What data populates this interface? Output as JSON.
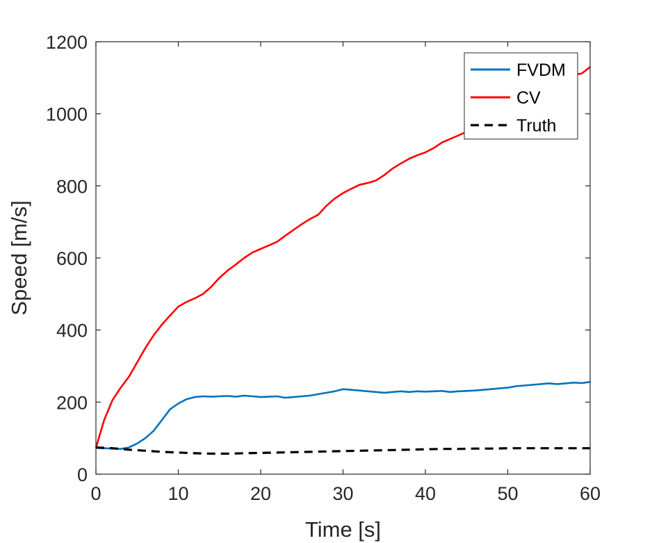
{
  "chart_data": {
    "type": "line",
    "xlabel": "Time [s]",
    "ylabel": "Speed [m/s]",
    "xlim": [
      0,
      60
    ],
    "ylim": [
      0,
      1200
    ],
    "xticks": [
      0,
      10,
      20,
      30,
      40,
      50,
      60
    ],
    "yticks": [
      0,
      200,
      400,
      600,
      800,
      1000,
      1200
    ],
    "grid": false,
    "legend_position": "top-right",
    "series": [
      {
        "name": "FVDM",
        "color": "#0072BD",
        "style": "solid",
        "x": [
          0,
          1,
          2,
          3,
          4,
          5,
          6,
          7,
          8,
          9,
          10,
          11,
          12,
          13,
          14,
          15,
          16,
          17,
          18,
          19,
          20,
          21,
          22,
          23,
          24,
          25,
          26,
          27,
          28,
          29,
          30,
          31,
          32,
          33,
          34,
          35,
          36,
          37,
          38,
          39,
          40,
          41,
          42,
          43,
          44,
          45,
          46,
          47,
          48,
          49,
          50,
          51,
          52,
          53,
          54,
          55,
          56,
          57,
          58,
          59,
          60
        ],
        "y": [
          73,
          72,
          71,
          70,
          74,
          85,
          100,
          120,
          150,
          180,
          196,
          208,
          214,
          216,
          215,
          216,
          217,
          215,
          218,
          216,
          214,
          215,
          216,
          212,
          214,
          216,
          218,
          222,
          226,
          230,
          236,
          234,
          232,
          230,
          228,
          226,
          228,
          230,
          228,
          230,
          229,
          230,
          231,
          228,
          230,
          231,
          232,
          234,
          236,
          238,
          240,
          244,
          246,
          248,
          250,
          252,
          250,
          252,
          254,
          253,
          256
        ]
      },
      {
        "name": "CV",
        "color": "#FF0000",
        "style": "solid",
        "x": [
          0,
          1,
          2,
          3,
          4,
          5,
          6,
          7,
          8,
          9,
          10,
          11,
          12,
          13,
          14,
          15,
          16,
          17,
          18,
          19,
          20,
          21,
          22,
          23,
          24,
          25,
          26,
          27,
          28,
          29,
          30,
          31,
          32,
          33,
          34,
          35,
          36,
          37,
          38,
          39,
          40,
          41,
          42,
          43,
          44,
          45,
          46,
          47,
          48,
          49,
          50,
          51,
          52,
          53,
          54,
          55,
          56,
          57,
          58,
          59,
          60
        ],
        "y": [
          73,
          150,
          205,
          240,
          270,
          310,
          350,
          385,
          415,
          440,
          465,
          478,
          488,
          500,
          520,
          545,
          565,
          582,
          600,
          615,
          625,
          635,
          645,
          662,
          678,
          694,
          708,
          720,
          745,
          765,
          780,
          792,
          803,
          808,
          815,
          830,
          848,
          862,
          875,
          885,
          893,
          905,
          920,
          930,
          940,
          950,
          962,
          975,
          990,
          1005,
          1015,
          1028,
          1045,
          1058,
          1068,
          1078,
          1090,
          1100,
          1108,
          1112,
          1130
        ]
      },
      {
        "name": "Truth",
        "color": "#000000",
        "style": "dashed",
        "x": [
          0,
          2,
          4,
          6,
          8,
          10,
          12,
          14,
          16,
          18,
          20,
          22,
          24,
          26,
          28,
          30,
          32,
          34,
          36,
          38,
          40,
          42,
          44,
          46,
          48,
          50,
          52,
          54,
          56,
          58,
          60
        ],
        "y": [
          74,
          72,
          68,
          65,
          62,
          60,
          58,
          57,
          57,
          58,
          59,
          60,
          61,
          62,
          63,
          64,
          65,
          66,
          67,
          68,
          69,
          70,
          70,
          71,
          71,
          72,
          72,
          72,
          72,
          72,
          72
        ]
      }
    ]
  }
}
